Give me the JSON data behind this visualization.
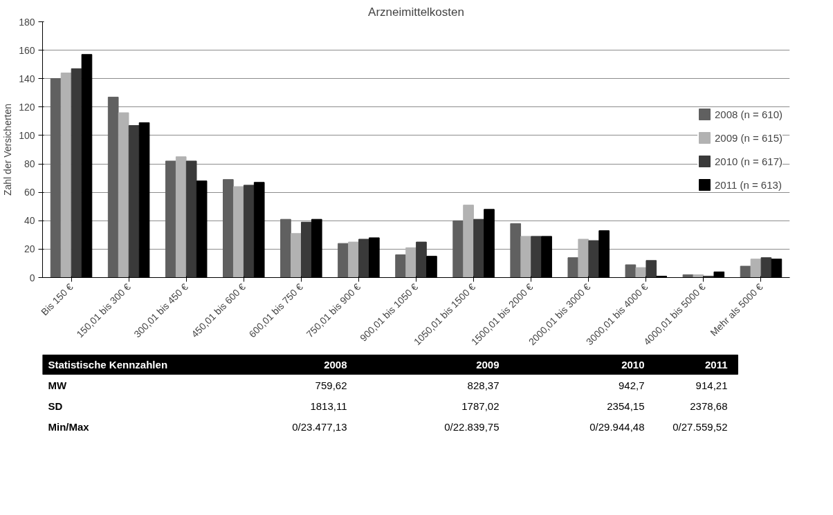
{
  "chart_data": {
    "type": "bar",
    "title": "Arzneimittelkosten",
    "ylabel": "Zahl der Versicherten",
    "categories": [
      "Bis 150 €",
      "150,01 bis 300 €",
      "300,01 bis 450 €",
      "450,01 bis 600 €",
      "600,01 bis 750 €",
      "750,01 bis 900 €",
      "900,01 bis 1050 €",
      "1050,01 bis 1500 €",
      "1500,01 bis 2000 €",
      "2000,01 bis 3000 €",
      "3000,01 bis 4000 €",
      "4000,01 bis 5000 €",
      "Mehr als 5000 €"
    ],
    "series": [
      {
        "name": "2008 (n = 610)",
        "color": "#606060",
        "values": [
          140,
          127,
          82,
          69,
          41,
          24,
          16,
          40,
          38,
          14,
          9,
          2,
          8
        ]
      },
      {
        "name": "2009 (n = 615)",
        "color": "#b2b2b2",
        "values": [
          144,
          116,
          85,
          64,
          31,
          25,
          21,
          51,
          29,
          27,
          7,
          2,
          13
        ]
      },
      {
        "name": "2010 (n = 617)",
        "color": "#3a3a3a",
        "values": [
          147,
          107,
          82,
          65,
          39,
          27,
          25,
          41,
          29,
          26,
          12,
          1,
          14
        ]
      },
      {
        "name": "2011 (n = 613)",
        "color": "#000000",
        "values": [
          157,
          109,
          68,
          67,
          41,
          28,
          15,
          48,
          29,
          33,
          1,
          4,
          13
        ]
      }
    ],
    "ylim": [
      0,
      180
    ],
    "yticks": [
      0,
      20,
      40,
      60,
      80,
      100,
      120,
      140,
      160,
      180
    ],
    "grid": "y",
    "legend": "right",
    "annotations": [
      "Statistische Kennzahlen",
      "2008",
      "2009",
      "2010",
      "2011",
      "MW",
      "759,62",
      "828,37",
      "942,7",
      "914,21",
      "SD",
      "1813,11",
      "1787,02",
      "2354,15",
      "2378,68",
      "Min/Max",
      "0/23.477,13",
      "0/22.839,75",
      "0/29.944,48",
      "0/27.559,52"
    ]
  }
}
